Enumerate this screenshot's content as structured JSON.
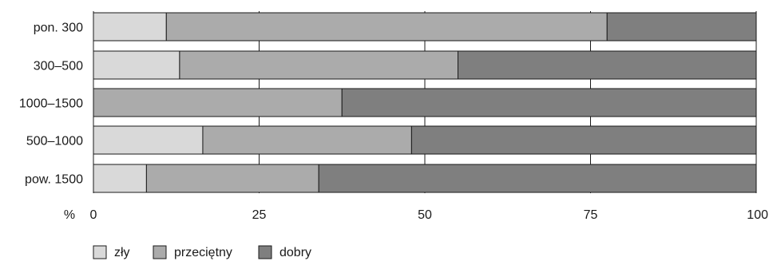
{
  "chart_data": {
    "type": "bar",
    "orientation": "horizontal",
    "stacked": true,
    "categories": [
      "pon. 300",
      "300–500",
      "1000–1500",
      "500–1000",
      "pow. 1500"
    ],
    "series": [
      {
        "name": "zły",
        "color": "#d9d9d9",
        "values": [
          11,
          13,
          0,
          16.5,
          8
        ]
      },
      {
        "name": "przeciętny",
        "color": "#ababab",
        "values": [
          66.5,
          42,
          37.5,
          31.5,
          26
        ]
      },
      {
        "name": "dobry",
        "color": "#7f7f7f",
        "values": [
          22.5,
          45,
          62.5,
          52,
          66
        ]
      }
    ],
    "x_unit_label": "%",
    "xlim": [
      0,
      100
    ],
    "xticks": [
      "0",
      "25",
      "50",
      "75",
      "100"
    ],
    "grid": "vertical",
    "legend_position": "bottom-left"
  }
}
